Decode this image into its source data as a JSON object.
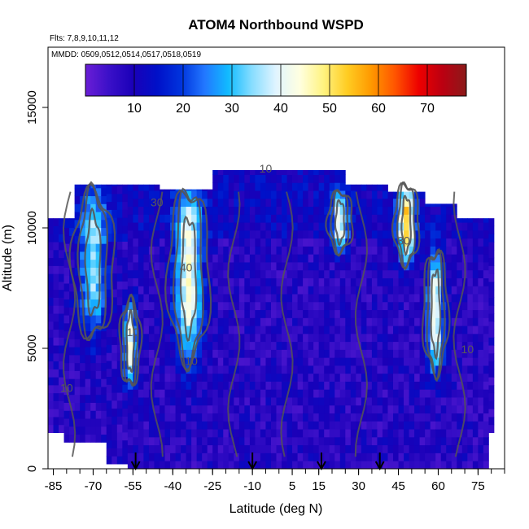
{
  "chart_data": {
    "type": "heatmap",
    "title": "ATOM4 Northbound WSPD",
    "flights_note": "Flts: 7,8,9,10,11,12",
    "dates_note": "MMDD: 0509,0512,0514,0517,0518,0519",
    "xlabel": "Latitude (deg N)",
    "ylabel": "Altitude (m)",
    "xlim": [
      -87,
      85
    ],
    "ylim": [
      0,
      17500
    ],
    "x_ticks": [
      -85,
      -70,
      -55,
      -40,
      -25,
      -10,
      5,
      15,
      30,
      45,
      60,
      75
    ],
    "x_tick_labels": [
      "-85",
      "-70",
      "-55",
      "-40",
      "-25",
      "-10",
      "5",
      "15",
      "30",
      "45",
      "60",
      "75"
    ],
    "y_ticks": [
      0,
      5000,
      10000,
      15000
    ],
    "y_tick_labels": [
      "0",
      "5000",
      "10000",
      "15000"
    ],
    "colorbar": {
      "range": [
        0,
        78
      ],
      "ticks": [
        10,
        20,
        30,
        40,
        50,
        60,
        70
      ],
      "tick_labels": [
        "10",
        "20",
        "30",
        "40",
        "50",
        "60",
        "70"
      ],
      "colors": [
        "#6a1ed6",
        "#3a10c8",
        "#1a00b8",
        "#0010c8",
        "#0033dd",
        "#2277ff",
        "#11bbff",
        "#88ddff",
        "#e0f4ff",
        "#ffffe0",
        "#fff380",
        "#ffcc22",
        "#ff9900",
        "#ff5500",
        "#ee0000",
        "#bb0011",
        "#8b1a1a"
      ]
    },
    "flight_path_markers_lat": [
      -54,
      -10,
      16,
      38
    ],
    "contour_labels": [
      {
        "text": "10",
        "lat": -5,
        "alt": 12300
      },
      {
        "text": "30",
        "lat": -46,
        "alt": 10900
      },
      {
        "text": "40",
        "lat": -35,
        "alt": 8200
      },
      {
        "text": "10",
        "lat": -55,
        "alt": 5500
      },
      {
        "text": "10",
        "lat": -80,
        "alt": 3200
      },
      {
        "text": "10",
        "lat": -33,
        "alt": 4300
      },
      {
        "text": "30",
        "lat": 47,
        "alt": 9300
      },
      {
        "text": "10",
        "lat": 71,
        "alt": 4800
      }
    ],
    "jets": [
      {
        "lat": -70,
        "alt_min": 5500,
        "alt_max": 11500,
        "width": 5,
        "peak": 35
      },
      {
        "lat": -34,
        "alt_min": 4500,
        "alt_max": 11500,
        "width": 5,
        "peak": 44
      },
      {
        "lat": -56,
        "alt_min": 3500,
        "alt_max": 7000,
        "width": 2.5,
        "peak": 40
      },
      {
        "lat": 23,
        "alt_min": 9000,
        "alt_max": 11500,
        "width": 3,
        "peak": 38
      },
      {
        "lat": 48,
        "alt_min": 8500,
        "alt_max": 11800,
        "width": 3,
        "peak": 50
      },
      {
        "lat": 59,
        "alt_min": 4000,
        "alt_max": 9000,
        "width": 3,
        "peak": 44
      }
    ],
    "grid": false,
    "legend": "colorbar top inside plot"
  }
}
